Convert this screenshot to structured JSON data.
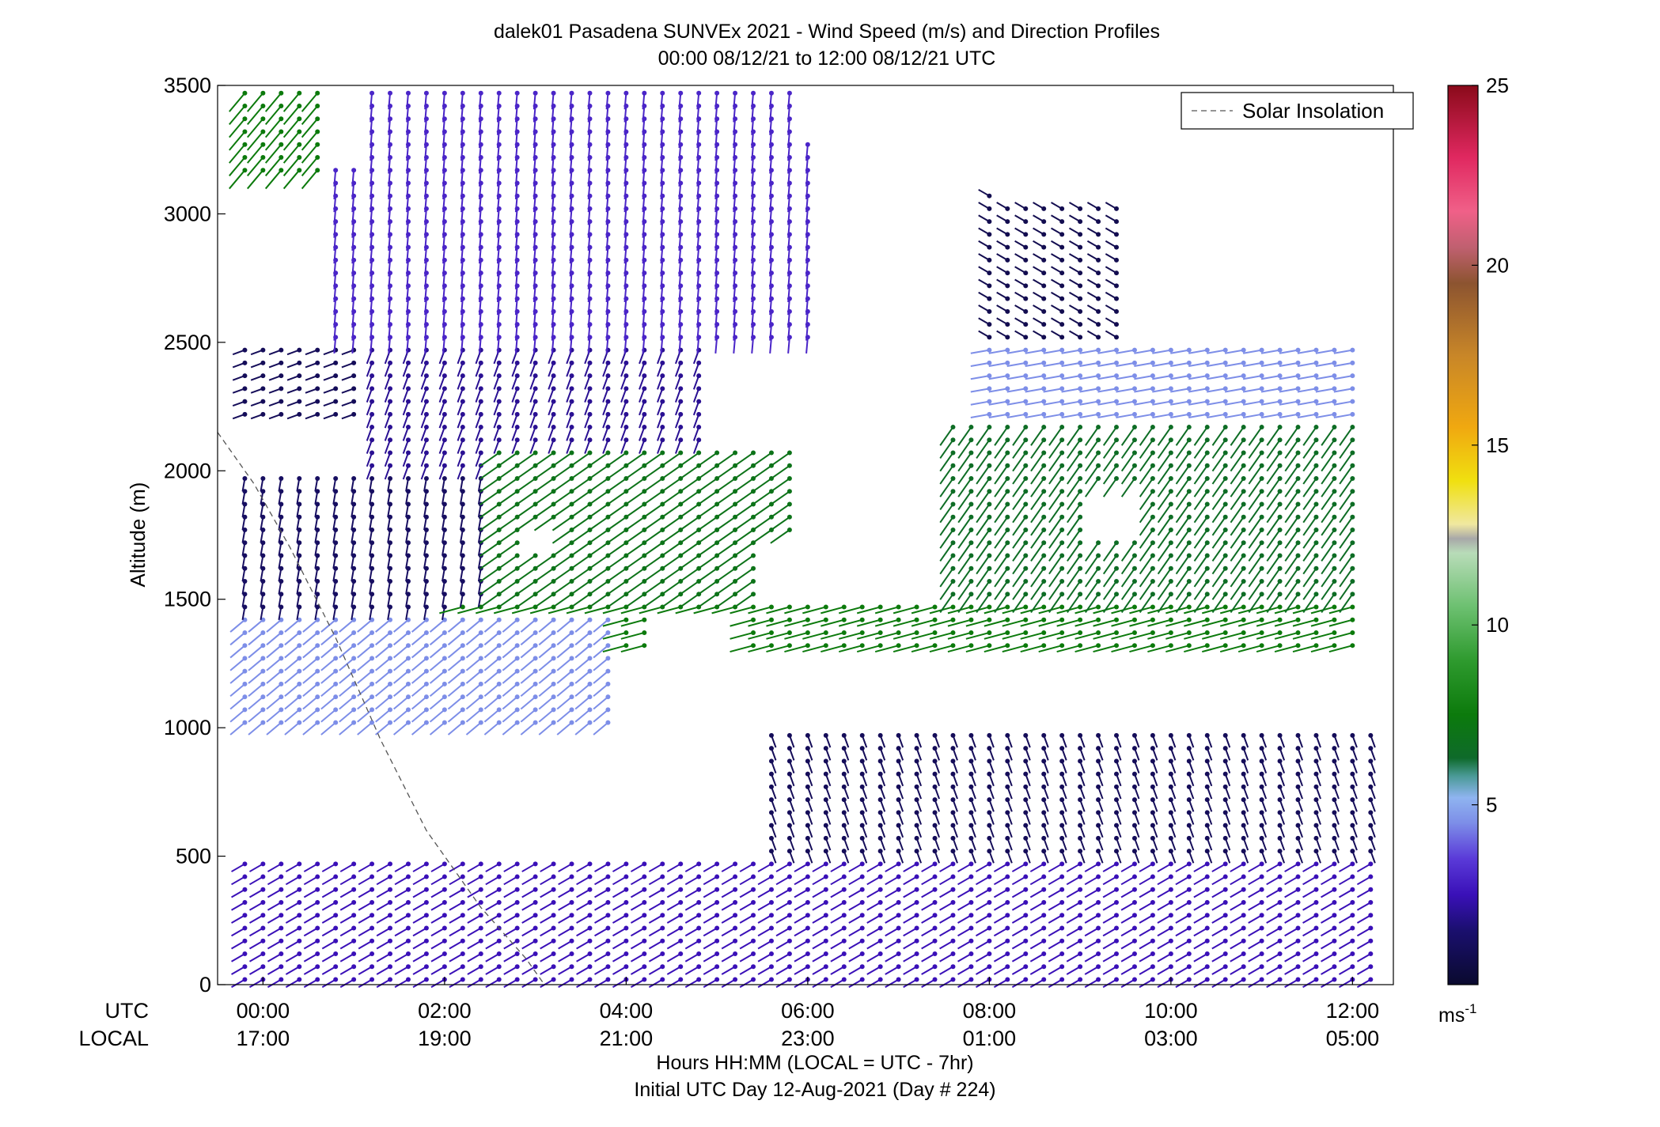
{
  "chart_data": {
    "type": "wind-barb-profile",
    "title_line1": "dalek01 Pasadena SUNVEx 2021 - Wind Speed (m/s) and Direction Profiles",
    "title_line2": "00:00 08/12/21 to 12:00 08/12/21  UTC",
    "ylabel": "Altitude (m)",
    "xlabel_line1": "Hours HH:MM  (LOCAL = UTC - 7hr)",
    "xlabel_line2": "Initial UTC Day 12-Aug-2021 (Day # 224)",
    "row_label_utc": "UTC",
    "row_label_local": "LOCAL",
    "xlim_hours": [
      -0.5,
      12.45
    ],
    "ylim": [
      0,
      3500
    ],
    "y_ticks": [
      0,
      500,
      1000,
      1500,
      2000,
      2500,
      3000,
      3500
    ],
    "y_tick_labels": [
      "0",
      "500",
      "1000",
      "1500",
      "2000",
      "2500",
      "3000",
      "3500"
    ],
    "x_ticks_hours": [
      0,
      2,
      4,
      6,
      8,
      10,
      12
    ],
    "x_tick_labels_utc": [
      "00:00",
      "02:00",
      "04:00",
      "06:00",
      "08:00",
      "10:00",
      "12:00"
    ],
    "x_tick_labels_local": [
      "17:00",
      "19:00",
      "21:00",
      "23:00",
      "01:00",
      "03:00",
      "05:00"
    ],
    "legend": {
      "label": "Solar Insolation",
      "position": "top-right"
    },
    "colorbar": {
      "min": 0,
      "max": 25,
      "ticks": [
        5,
        10,
        15,
        20,
        25
      ],
      "tick_labels": [
        "5",
        "10",
        "15",
        "20",
        "25"
      ],
      "unit_base": "ms",
      "unit_exp": "-1",
      "stops": [
        {
          "v": 0,
          "c": "#0a0a2e"
        },
        {
          "v": 1.5,
          "c": "#1a0f6e"
        },
        {
          "v": 2.5,
          "c": "#3a10b8"
        },
        {
          "v": 3.5,
          "c": "#5a3ad8"
        },
        {
          "v": 4.5,
          "c": "#7d8ee8"
        },
        {
          "v": 5.2,
          "c": "#8fb4f0"
        },
        {
          "v": 5.8,
          "c": "#4a9a96"
        },
        {
          "v": 6.3,
          "c": "#0e6a2a"
        },
        {
          "v": 7.5,
          "c": "#0c7a0c"
        },
        {
          "v": 9.0,
          "c": "#2e9a2e"
        },
        {
          "v": 10.5,
          "c": "#6cc070"
        },
        {
          "v": 12.0,
          "c": "#b8dcb8"
        },
        {
          "v": 12.4,
          "c": "#a8a8a8"
        },
        {
          "v": 12.8,
          "c": "#f0e8a0"
        },
        {
          "v": 14.0,
          "c": "#f0e010"
        },
        {
          "v": 15.5,
          "c": "#f0a810"
        },
        {
          "v": 17.5,
          "c": "#c88628"
        },
        {
          "v": 19.5,
          "c": "#8c5430"
        },
        {
          "v": 20.5,
          "c": "#c06070"
        },
        {
          "v": 21.5,
          "c": "#f06088"
        },
        {
          "v": 23.0,
          "c": "#e02860"
        },
        {
          "v": 25.0,
          "c": "#8a0a1a"
        }
      ]
    },
    "insolation_line": [
      [
        -0.5,
        2150
      ],
      [
        -0.1,
        1950
      ],
      [
        0.3,
        1700
      ],
      [
        0.8,
        1350
      ],
      [
        1.3,
        950
      ],
      [
        1.8,
        600
      ],
      [
        2.4,
        300
      ],
      [
        2.9,
        100
      ],
      [
        3.1,
        0
      ]
    ],
    "time_step_hours": 0.2,
    "gaps": [
      {
        "hours": [
          8.2,
          9.5
        ],
        "alt": [
          3050,
          3500
        ]
      },
      {
        "hours": [
          9.9,
          10.05
        ],
        "alt": [
          3320,
          3500
        ]
      },
      {
        "hours": [
          0.8,
          1.05
        ],
        "alt": [
          3200,
          3500
        ]
      },
      {
        "hours": [
          6.0,
          6.4
        ],
        "alt": [
          3300,
          3500
        ]
      },
      {
        "hours": [
          6.5,
          7.5
        ],
        "alt": [
          3250,
          3500
        ]
      },
      {
        "hours": [
          2.9,
          3.3
        ],
        "alt": [
          1680,
          1800
        ]
      },
      {
        "hours": [
          5.5,
          6.6
        ],
        "alt": [
          1500,
          1750
        ]
      },
      {
        "hours": [
          4.3,
          5.4
        ],
        "alt": [
          1300,
          1420
        ]
      },
      {
        "hours": [
          6.6,
          7.5
        ],
        "alt": [
          1600,
          2150
        ]
      },
      {
        "hours": [
          9.1,
          9.6
        ],
        "alt": [
          1750,
          1950
        ]
      }
    ],
    "series": [
      {
        "name": "",
        "alt_band": [
          3150,
          3500
        ],
        "hours": [
          -0.2,
          0.8
        ],
        "speed": 7.5,
        "dir": 220
      },
      {
        "name": "",
        "alt_band": [
          2500,
          3500
        ],
        "hours": [
          0.8,
          6.2
        ],
        "speed": 3.0,
        "dir": 185
      },
      {
        "name": "",
        "alt_band": [
          2200,
          2500
        ],
        "hours": [
          -0.2,
          1.2
        ],
        "speed": 1.0,
        "dir": 250
      },
      {
        "name": "",
        "alt_band": [
          2000,
          2500
        ],
        "hours": [
          1.2,
          5.0
        ],
        "speed": 2.0,
        "dir": 200
      },
      {
        "name": "",
        "alt_band": [
          1450,
          2000
        ],
        "hours": [
          -0.2,
          2.5
        ],
        "speed": 1.2,
        "dir": 190
      },
      {
        "name": "",
        "alt_band": [
          1500,
          2100
        ],
        "hours": [
          2.5,
          6.0
        ],
        "speed": 7.0,
        "dir": 235
      },
      {
        "name": "",
        "alt_band": [
          2400,
          3100
        ],
        "hours": [
          8.0,
          9.5
        ],
        "speed": 0.8,
        "dir": 300
      },
      {
        "name": "",
        "alt_band": [
          2200,
          2500
        ],
        "hours": [
          8.0,
          12.0
        ],
        "speed": 4.5,
        "dir": 260
      },
      {
        "name": "",
        "alt_band": [
          1500,
          2200
        ],
        "hours": [
          7.5,
          12.0
        ],
        "speed": 6.5,
        "dir": 215
      },
      {
        "name": "",
        "alt_band": [
          1300,
          1500
        ],
        "hours": [
          2.0,
          12.0
        ],
        "speed": 7.5,
        "dir": 255
      },
      {
        "name": "",
        "alt_band": [
          1000,
          1450
        ],
        "hours": [
          -0.2,
          4.0
        ],
        "speed": 4.5,
        "dir": 230
      },
      {
        "name": "",
        "alt_band": [
          500,
          1000
        ],
        "hours": [
          5.5,
          12.3
        ],
        "speed": 1.0,
        "dir": 160
      },
      {
        "name": "",
        "alt_band": [
          0,
          500
        ],
        "hours": [
          -0.2,
          12.3
        ],
        "speed": 2.5,
        "dir": 240
      }
    ]
  }
}
